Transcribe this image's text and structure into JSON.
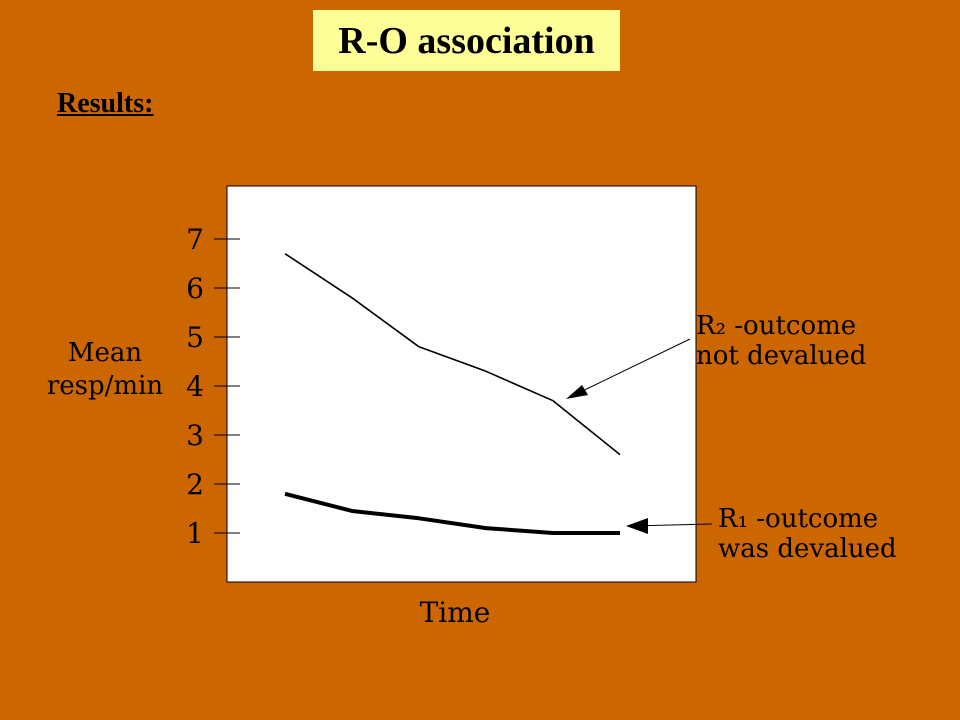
{
  "slide": {
    "title": "R-O association",
    "subtitle": "Results:"
  },
  "colors": {
    "background": "#CC6600",
    "title_box": "#FFFF99",
    "plot_area": "#FFFFFF",
    "lines": "#000000"
  },
  "chart_data": {
    "type": "line",
    "title": "",
    "xlabel": "Time",
    "ylabel": [
      "Mean",
      "resp/min"
    ],
    "yticks": [
      1,
      2,
      3,
      4,
      5,
      6,
      7
    ],
    "ylim": [
      0.6,
      7.6
    ],
    "x_tick_labels": false,
    "grid": false,
    "x": [
      1,
      2,
      3,
      4,
      5,
      6
    ],
    "series": [
      {
        "name": "",
        "annotation": [
          "R₂ -outcome",
          "not devalued"
        ],
        "values": [
          6.7,
          5.8,
          4.8,
          4.3,
          3.7,
          2.6
        ],
        "style": "thin"
      },
      {
        "name": "",
        "annotation": [
          "R₁ -outcome",
          "was devalued"
        ],
        "values": [
          1.8,
          1.45,
          1.3,
          1.1,
          1.0,
          1.0
        ],
        "style": "thick"
      }
    ]
  }
}
